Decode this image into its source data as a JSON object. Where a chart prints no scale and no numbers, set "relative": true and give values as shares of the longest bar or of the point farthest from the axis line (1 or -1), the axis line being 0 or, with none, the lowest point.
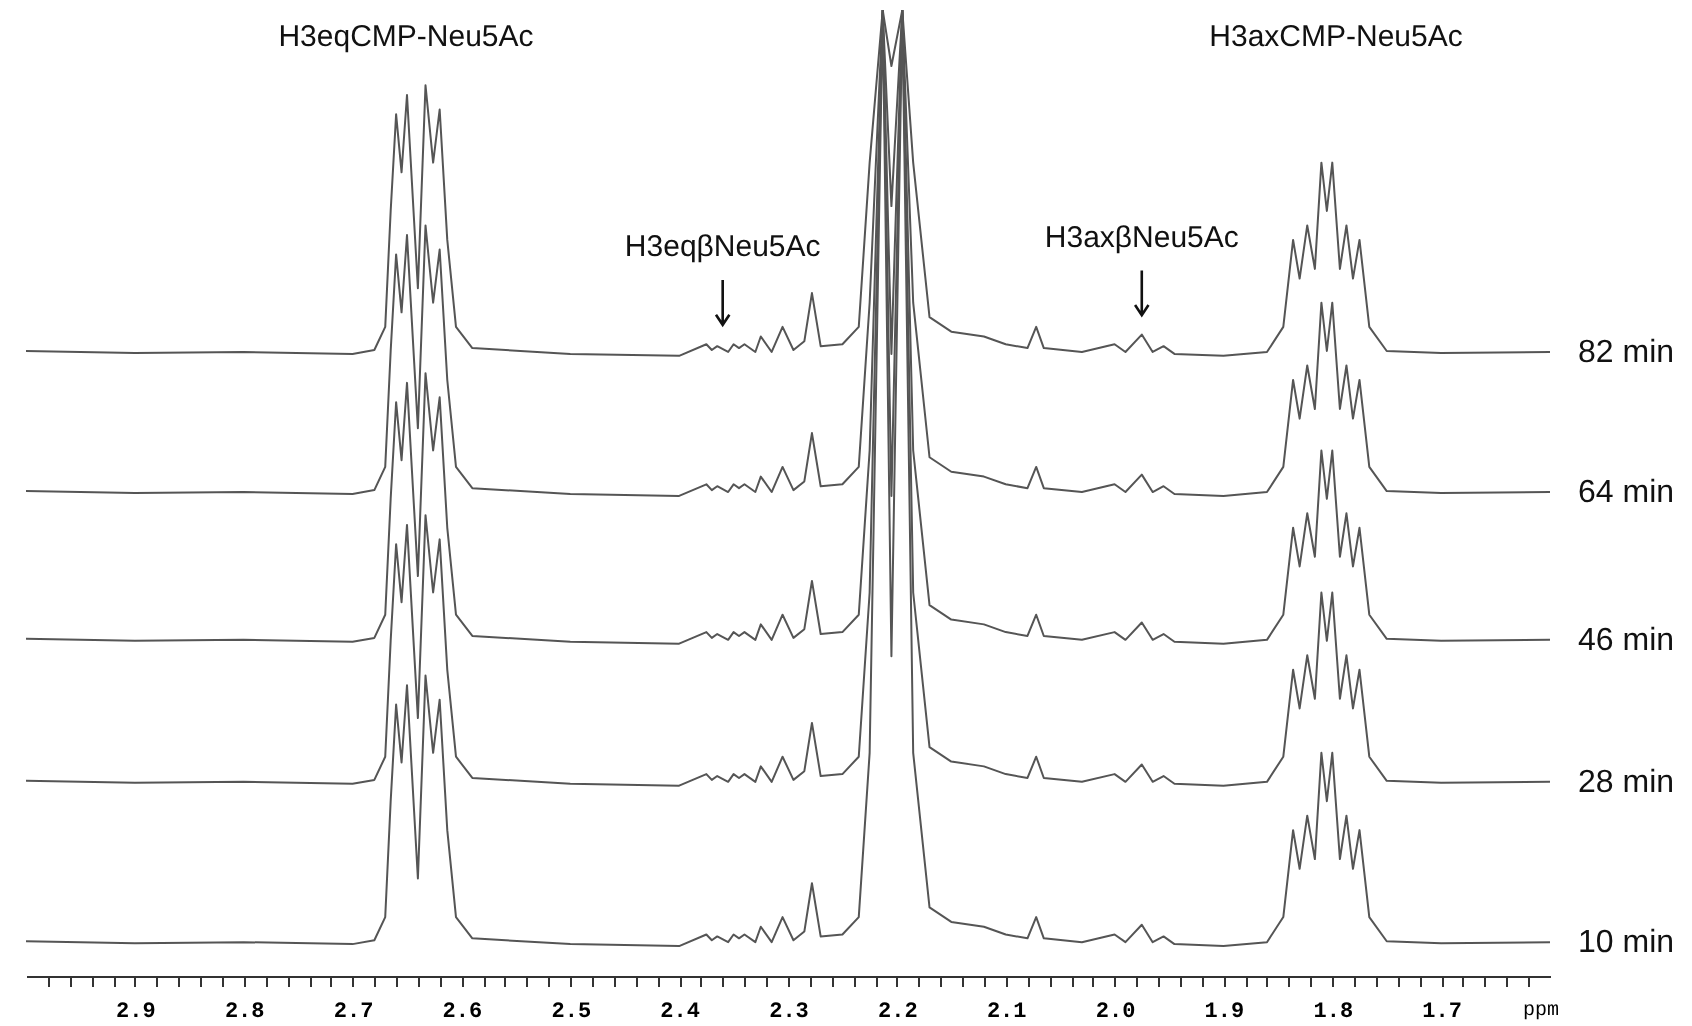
{
  "chart_data": {
    "type": "line",
    "relative": true,
    "xlabel": "ppm",
    "xlim": [
      3.0,
      1.6
    ],
    "line_style": "solid",
    "xticks": [
      {
        "value": 2.98,
        "label": null
      },
      {
        "value": 2.96,
        "label": null
      },
      {
        "value": 2.94,
        "label": null
      },
      {
        "value": 2.92,
        "label": null
      },
      2.9,
      {
        "value": 2.88,
        "label": null
      },
      {
        "value": 2.86,
        "label": null
      },
      {
        "value": 2.84,
        "label": null
      },
      {
        "value": 2.82,
        "label": null
      },
      2.8,
      {
        "value": 2.78,
        "label": null
      },
      {
        "value": 2.76,
        "label": null
      },
      {
        "value": 2.74,
        "label": null
      },
      {
        "value": 2.72,
        "label": null
      },
      2.7,
      {
        "value": 2.68,
        "label": null
      },
      {
        "value": 2.66,
        "label": null
      },
      {
        "value": 2.64,
        "label": null
      },
      {
        "value": 2.62,
        "label": null
      },
      2.6,
      {
        "value": 2.58,
        "label": null
      },
      {
        "value": 2.56,
        "label": null
      },
      {
        "value": 2.54,
        "label": null
      },
      {
        "value": 2.52,
        "label": null
      },
      2.5,
      {
        "value": 2.48,
        "label": null
      },
      {
        "value": 2.46,
        "label": null
      },
      {
        "value": 2.44,
        "label": null
      },
      {
        "value": 2.42,
        "label": null
      },
      2.4,
      {
        "value": 2.38,
        "label": null
      },
      {
        "value": 2.36,
        "label": null
      },
      {
        "value": 2.34,
        "label": null
      },
      {
        "value": 2.32,
        "label": null
      },
      2.3,
      {
        "value": 2.28,
        "label": null
      },
      {
        "value": 2.26,
        "label": null
      },
      {
        "value": 2.24,
        "label": null
      },
      {
        "value": 2.22,
        "label": null
      },
      2.2,
      {
        "value": 2.18,
        "label": null
      },
      {
        "value": 2.16,
        "label": null
      },
      {
        "value": 2.14,
        "label": null
      },
      {
        "value": 2.12,
        "label": null
      },
      2.1,
      {
        "value": 2.08,
        "label": null
      },
      {
        "value": 2.06,
        "label": null
      },
      {
        "value": 2.04,
        "label": null
      },
      {
        "value": 2.02,
        "label": null
      },
      {
        "value": 2.0,
        "label": "2.0"
      },
      {
        "value": 1.98,
        "label": null
      },
      {
        "value": 1.96,
        "label": null
      },
      {
        "value": 1.94,
        "label": null
      },
      {
        "value": 1.92,
        "label": null
      },
      1.9,
      {
        "value": 1.88,
        "label": null
      },
      {
        "value": 1.86,
        "label": null
      },
      {
        "value": 1.84,
        "label": null
      },
      {
        "value": 1.82,
        "label": null
      },
      1.8,
      {
        "value": 1.78,
        "label": null
      },
      {
        "value": 1.76,
        "label": null
      },
      {
        "value": 1.74,
        "label": null
      },
      {
        "value": 1.72,
        "label": null
      },
      1.7,
      {
        "value": 1.68,
        "label": null
      },
      {
        "value": 1.66,
        "label": null
      },
      {
        "value": 1.64,
        "label": null
      },
      {
        "value": 1.62,
        "label": null
      }
    ],
    "x": [
      3.0,
      2.9,
      2.8,
      2.7,
      2.68,
      2.67,
      2.665,
      2.66,
      2.655,
      2.65,
      2.64,
      2.633,
      2.626,
      2.62,
      2.613,
      2.605,
      2.59,
      2.5,
      2.4,
      2.375,
      2.37,
      2.365,
      2.355,
      2.35,
      2.345,
      2.34,
      2.33,
      2.325,
      2.315,
      2.305,
      2.295,
      2.285,
      2.278,
      2.27,
      2.25,
      2.235,
      2.225,
      2.213,
      2.205,
      2.195,
      2.185,
      2.17,
      2.15,
      2.12,
      2.1,
      2.08,
      2.072,
      2.065,
      2.03,
      2.0,
      1.99,
      1.975,
      1.965,
      1.955,
      1.945,
      1.9,
      1.86,
      1.845,
      1.836,
      1.83,
      1.823,
      1.816,
      1.81,
      1.805,
      1.8,
      1.793,
      1.787,
      1.781,
      1.775,
      1.766,
      1.75,
      1.7,
      1.6
    ],
    "series": [
      {
        "name": "82 min",
        "color": "#555555",
        "values": [
          0.647,
          0.645,
          0.646,
          0.644,
          0.648,
          0.672,
          0.792,
          0.892,
          0.832,
          0.912,
          0.712,
          0.922,
          0.842,
          0.897,
          0.762,
          0.672,
          0.65,
          0.644,
          0.642,
          0.654,
          0.648,
          0.652,
          0.646,
          0.654,
          0.65,
          0.654,
          0.646,
          0.662,
          0.646,
          0.672,
          0.648,
          0.657,
          0.707,
          0.652,
          0.654,
          0.672,
          0.842,
          1,
          0.942,
          1,
          0.842,
          0.682,
          0.667,
          0.662,
          0.654,
          0.65,
          0.672,
          0.65,
          0.646,
          0.654,
          0.646,
          0.664,
          0.646,
          0.652,
          0.644,
          0.642,
          0.646,
          0.672,
          0.762,
          0.722,
          0.777,
          0.732,
          0.842,
          0.792,
          0.842,
          0.732,
          0.777,
          0.722,
          0.762,
          0.672,
          0.647,
          0.645,
          0.646
        ]
      },
      {
        "name": "64 min",
        "color": "#555555",
        "values": [
          0.502,
          0.5,
          0.501,
          0.499,
          0.503,
          0.527,
          0.647,
          0.747,
          0.687,
          0.767,
          0.567,
          0.777,
          0.697,
          0.752,
          0.617,
          0.527,
          0.505,
          0.499,
          0.497,
          0.509,
          0.503,
          0.507,
          0.501,
          0.509,
          0.505,
          0.509,
          0.501,
          0.517,
          0.501,
          0.527,
          0.503,
          0.512,
          0.562,
          0.507,
          0.509,
          0.527,
          0.697,
          1,
          0.797,
          1,
          0.697,
          0.537,
          0.522,
          0.517,
          0.509,
          0.505,
          0.527,
          0.505,
          0.501,
          0.509,
          0.501,
          0.519,
          0.501,
          0.507,
          0.499,
          0.497,
          0.501,
          0.527,
          0.617,
          0.577,
          0.632,
          0.587,
          0.697,
          0.647,
          0.697,
          0.587,
          0.632,
          0.577,
          0.617,
          0.527,
          0.502,
          0.5,
          0.501
        ]
      },
      {
        "name": "46 min",
        "color": "#555555",
        "values": [
          0.349,
          0.347,
          0.348,
          0.346,
          0.35,
          0.374,
          0.494,
          0.594,
          0.534,
          0.614,
          0.414,
          0.624,
          0.544,
          0.599,
          0.464,
          0.374,
          0.352,
          0.346,
          0.344,
          0.356,
          0.35,
          0.354,
          0.348,
          0.356,
          0.352,
          0.356,
          0.348,
          0.364,
          0.348,
          0.374,
          0.35,
          0.359,
          0.409,
          0.354,
          0.356,
          0.374,
          0.544,
          1,
          0.644,
          1,
          0.544,
          0.384,
          0.369,
          0.364,
          0.356,
          0.352,
          0.374,
          0.352,
          0.348,
          0.356,
          0.348,
          0.366,
          0.348,
          0.354,
          0.346,
          0.344,
          0.348,
          0.374,
          0.464,
          0.424,
          0.479,
          0.434,
          0.544,
          0.494,
          0.544,
          0.434,
          0.479,
          0.424,
          0.464,
          0.374,
          0.349,
          0.347,
          0.348
        ]
      },
      {
        "name": "28 min",
        "color": "#555555",
        "values": [
          0.202,
          0.2,
          0.201,
          0.199,
          0.203,
          0.227,
          0.347,
          0.447,
          0.387,
          0.467,
          0.267,
          0.477,
          0.397,
          0.452,
          0.317,
          0.227,
          0.205,
          0.199,
          0.197,
          0.209,
          0.203,
          0.207,
          0.201,
          0.209,
          0.205,
          0.209,
          0.201,
          0.217,
          0.201,
          0.227,
          0.203,
          0.212,
          0.262,
          0.207,
          0.209,
          0.227,
          0.397,
          1,
          0.497,
          1,
          0.397,
          0.237,
          0.222,
          0.217,
          0.209,
          0.205,
          0.227,
          0.205,
          0.201,
          0.209,
          0.201,
          0.219,
          0.201,
          0.207,
          0.199,
          0.197,
          0.201,
          0.227,
          0.317,
          0.277,
          0.332,
          0.287,
          0.397,
          0.347,
          0.397,
          0.287,
          0.332,
          0.277,
          0.317,
          0.227,
          0.202,
          0.2,
          0.201
        ]
      },
      {
        "name": "10 min",
        "color": "#555555",
        "values": [
          0.036,
          0.034,
          0.035,
          0.033,
          0.037,
          0.061,
          0.181,
          0.281,
          0.221,
          0.301,
          0.101,
          0.311,
          0.231,
          0.286,
          0.151,
          0.061,
          0.039,
          0.033,
          0.031,
          0.043,
          0.037,
          0.041,
          0.035,
          0.043,
          0.039,
          0.043,
          0.035,
          0.051,
          0.035,
          0.061,
          0.037,
          0.046,
          0.096,
          0.041,
          0.043,
          0.061,
          0.231,
          1,
          0.331,
          1,
          0.231,
          0.071,
          0.056,
          0.051,
          0.043,
          0.039,
          0.061,
          0.039,
          0.035,
          0.043,
          0.035,
          0.053,
          0.035,
          0.041,
          0.033,
          0.031,
          0.035,
          0.061,
          0.151,
          0.111,
          0.166,
          0.121,
          0.231,
          0.181,
          0.231,
          0.121,
          0.166,
          0.111,
          0.151,
          0.061,
          0.036,
          0.034,
          0.035
        ]
      }
    ],
    "annotations": [
      "H3eqCMP-Neu5Ac",
      "H3axCMP-Neu5Ac",
      {
        "text": "H3eqβNeu5Ac",
        "x": 2.36,
        "y": 0.66
      },
      {
        "text": "H3axβNeu5Ac",
        "x": 1.975,
        "y": 0.67
      }
    ]
  }
}
